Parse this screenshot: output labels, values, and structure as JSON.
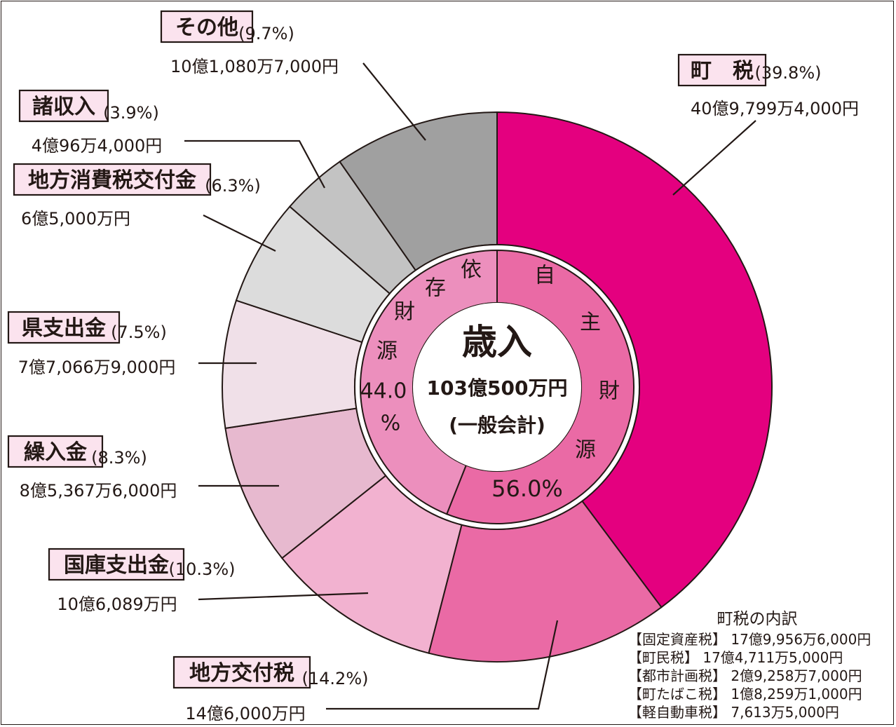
{
  "chart_data": {
    "type": "pie",
    "title": "歳入",
    "total": "103億500万円",
    "subtitle": "(一般会計)",
    "slices": [
      {
        "label": "町　税",
        "percent": 39.8,
        "pct_text": "(39.8%)",
        "amount": "40億9,799万4,000円",
        "color": "#e4007f"
      },
      {
        "label": "地方交付税",
        "percent": 14.2,
        "pct_text": "(14.2%)",
        "amount": "14億6,000万円",
        "color": "#ea6aa5"
      },
      {
        "label": "国庫支出金",
        "percent": 10.3,
        "pct_text": "(10.3%)",
        "amount": "10億6,089万円",
        "color": "#f2b2d0"
      },
      {
        "label": "繰入金",
        "percent": 8.3,
        "pct_text": "(8.3%)",
        "amount": "8億5,367万6,000円",
        "color": "#e7b9cf"
      },
      {
        "label": "県支出金",
        "percent": 7.5,
        "pct_text": "(7.5%)",
        "amount": "7億7,066万9,000円",
        "color": "#f0e0e8"
      },
      {
        "label": "地方消費税交付金",
        "percent": 6.3,
        "pct_text": "(6.3%)",
        "amount": "6億5,000万円",
        "color": "#dcdcdc"
      },
      {
        "label": "諸収入",
        "percent": 3.9,
        "pct_text": "(3.9%)",
        "amount": "4億96万4,000円",
        "color": "#c3c3c3"
      },
      {
        "label": "その他",
        "percent": 9.7,
        "pct_text": "(9.7%)",
        "amount": "10億1,080万7,000円",
        "color": "#a0a0a0"
      }
    ],
    "inner_ring": [
      {
        "chars": [
          "自",
          "主",
          "財",
          "源"
        ],
        "percent_text": "56.0%",
        "percent": 56.0,
        "color": "#ea6aa5"
      },
      {
        "chars": [
          "依",
          "存",
          "財",
          "源"
        ],
        "percent_text": [
          "44.0",
          "%"
        ],
        "percent": 44.0,
        "color": "#ec8fbd"
      }
    ],
    "breakdown": {
      "title": "町税の内訳",
      "items": [
        "【固定資産税】 17億9,956万6,000円",
        "【町民税】 17億4,711万5,000円",
        "【都市計画税】 2億9,258万7,000円",
        "【町たばこ税】 1億8,259万1,000円",
        "【軽自動車税】 7,613万5,000円"
      ]
    }
  },
  "colors": {
    "stroke": "#231815",
    "label_bg": "#fbe3ee"
  }
}
